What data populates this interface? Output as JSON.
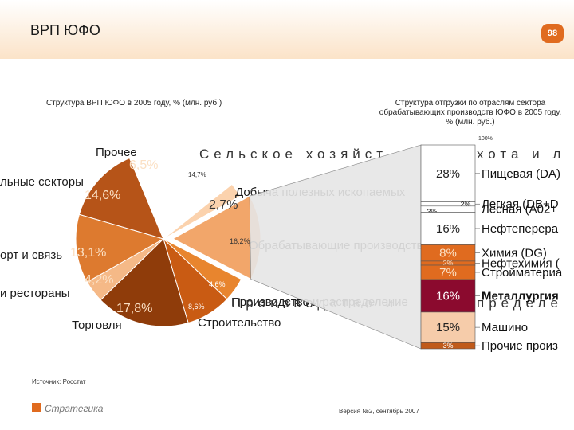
{
  "slide": {
    "title": "ВРП ЮФО",
    "page_number": "98",
    "pie_subtitle": "Структура ВРП ЮФО в 2005 году, % (млн. руб.)",
    "bar_subtitle": "Структура отгрузки по отраслям сектора обрабатывающих производств ЮФО в 2005 году, % (млн. руб.)",
    "source": "Источник: Росстат",
    "version": "Версия №2, сентябрь 2007",
    "logo_text": "Стратегика"
  },
  "colors": {
    "accent": "#e06b1f",
    "pie": [
      "#ffffff",
      "#fbd2ad",
      "#f2a66a",
      "#e8852e",
      "#c95b13",
      "#8f3c0a",
      "#f5b987",
      "#dd7a2f",
      "#b65418"
    ],
    "bar_segments": [
      "#ffffff",
      "#ffffff",
      "#ffffff",
      "#ffffff",
      "#e06b1f",
      "#e06b1f",
      "#8b0a2e",
      "#f6ccaa",
      "#c05a1a"
    ]
  },
  "chart_data": [
    {
      "type": "pie",
      "title": "Структура ВРП ЮФО в 2005 году, % (млн. руб.)",
      "slices": [
        {
          "label": "Сельское хозяйство",
          "value": 14.7,
          "value_label": "14,7%"
        },
        {
          "label": "Добыча полезных ископаемых",
          "value": 2.7,
          "value_label": "2,7%"
        },
        {
          "label": "Обрабатывающие производства",
          "value": 16.2,
          "value_label": "16,2%"
        },
        {
          "label": "Производство и распределение",
          "value": 4.6,
          "value_label": "4,6%"
        },
        {
          "label": "Строительство",
          "value": 8.6,
          "value_label": "8,6%"
        },
        {
          "label": "Торговля",
          "value": 17.8,
          "value_label": "17,8%"
        },
        {
          "label": "и рестораны",
          "value": 4.2,
          "value_label": "4,2%"
        },
        {
          "label": "орт и связь",
          "value": 13.1,
          "value_label": "13,1%"
        },
        {
          "label": "льные секторы",
          "value": 14.6,
          "value_label": "14,6%"
        },
        {
          "label": "Прочее",
          "value": 6.5,
          "value_label": "6,5%"
        }
      ]
    },
    {
      "type": "bar",
      "title": "Структура отгрузки по отраслям сектора обрабатывающих производств ЮФО в 2005 году, % (млн. руб.)",
      "total_label": "100%",
      "segments": [
        {
          "value": 28,
          "value_label": "28%",
          "label": "Пищевая (DA)"
        },
        {
          "value": 2,
          "value_label": "2%",
          "label": "Легкая (DB+D"
        },
        {
          "value": 3,
          "value_label": "3%",
          "label": "Лесная (A02+"
        },
        {
          "value": 16,
          "value_label": "16%",
          "label": "Нефтеперера"
        },
        {
          "value": 8,
          "value_label": "8%",
          "label": "Химия (DG)"
        },
        {
          "value": 2,
          "value_label": "2%",
          "label": "Нефтехимия ("
        },
        {
          "value": 7,
          "value_label": "7%",
          "label": "Стройматериа"
        },
        {
          "value": 16,
          "value_label": "16%",
          "label": "Металлургия"
        },
        {
          "value": 15,
          "value_label": "15%",
          "label": "Машино"
        },
        {
          "value": 3,
          "value_label": "3%",
          "label": "Прочие произ"
        }
      ]
    }
  ],
  "annotations": {
    "big_agriculture": "Сельское хозяйст",
    "big_agriculture_right": "хота и л",
    "production_left": "Производство и",
    "production_right": "пределе"
  }
}
